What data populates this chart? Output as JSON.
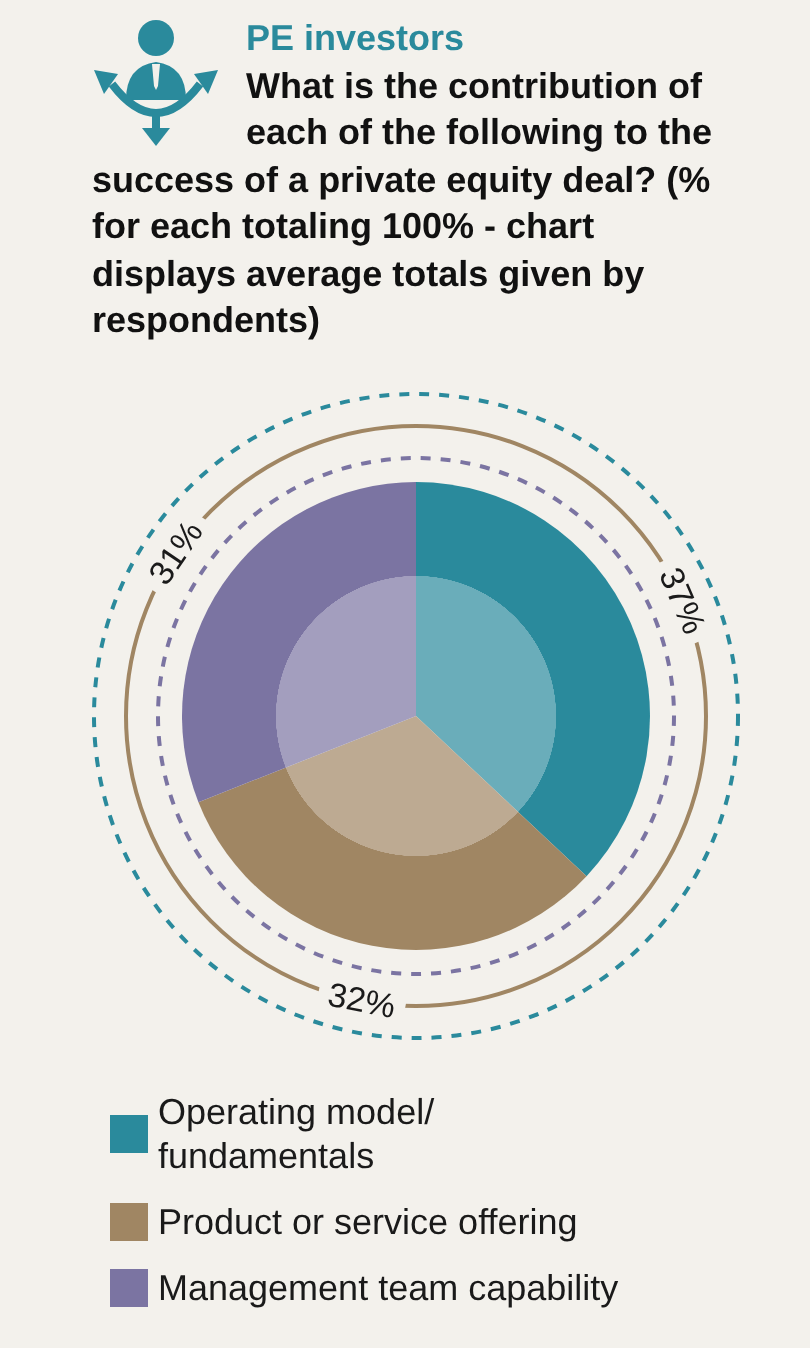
{
  "chart_data": {
    "type": "pie",
    "title": "PE investors",
    "subtitle": "What is the contribution of each of the following to the success of a private equity deal? (% for each totaling 100% - chart displays average totals given by respondents)",
    "categories": [
      "Operating model/ fundamentals",
      "Product or service offering",
      "Management team capability"
    ],
    "values": [
      37,
      32,
      31
    ],
    "colors": [
      "#2a8a9c",
      "#a08663",
      "#7b74a2"
    ],
    "value_labels": [
      "37%",
      "32%",
      "31%"
    ],
    "legend": "bottom"
  }
}
